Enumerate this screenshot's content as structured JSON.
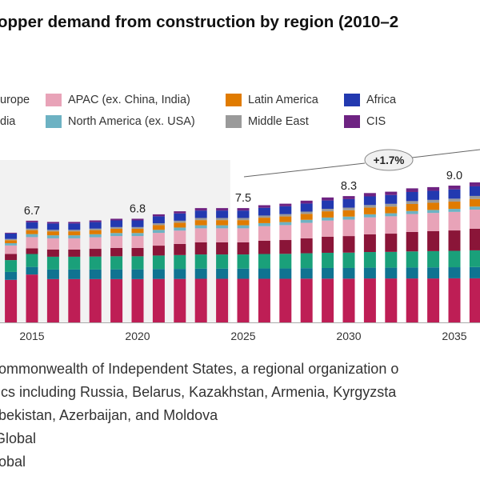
{
  "title": "opper demand from construction by region (2010–2",
  "legend": [
    {
      "label": "urope",
      "color": "#1AA07A"
    },
    {
      "label": "dia",
      "color": "#8A1538"
    },
    {
      "label": "APAC (ex. China, India)",
      "color": "#E8A3B8"
    },
    {
      "label": "North America (ex. USA)",
      "color": "#6DB2C3"
    },
    {
      "label": "Latin America",
      "color": "#E07B00"
    },
    {
      "label": "Middle East",
      "color": "#9A9A9A"
    },
    {
      "label": "Africa",
      "color": "#2239B0"
    },
    {
      "label": "CIS",
      "color": "#6E2382"
    }
  ],
  "chart_data": {
    "type": "bar",
    "stacked": true,
    "categories": [
      2014,
      2015,
      2016,
      2017,
      2018,
      2019,
      2020,
      2021,
      2022,
      2023,
      2024,
      2025,
      2026,
      2027,
      2028,
      2029,
      2030,
      2031,
      2032,
      2033,
      2034,
      2035,
      2036
    ],
    "x_tick_labels": [
      "2015",
      "2020",
      "2025",
      "2030",
      "2035"
    ],
    "ylim": [
      0,
      10.6
    ],
    "grid": false,
    "historical_shading_until": 2024,
    "series": [
      {
        "color": "#BE1E55",
        "values": [
          2.8,
          3.15,
          2.85,
          2.85,
          2.85,
          2.85,
          2.85,
          2.86,
          2.86,
          2.87,
          2.87,
          2.87,
          2.87,
          2.87,
          2.88,
          2.88,
          2.88,
          2.89,
          2.89,
          2.89,
          2.89,
          2.9,
          2.9
        ]
      },
      {
        "color": "#0F7391",
        "values": [
          0.52,
          0.5,
          0.63,
          0.63,
          0.63,
          0.64,
          0.64,
          0.65,
          0.66,
          0.67,
          0.67,
          0.67,
          0.68,
          0.68,
          0.69,
          0.7,
          0.7,
          0.71,
          0.71,
          0.72,
          0.73,
          0.73,
          0.74
        ]
      },
      {
        "name": "urope",
        "color": "#1AA07A",
        "values": [
          0.78,
          0.85,
          0.84,
          0.84,
          0.85,
          0.86,
          0.86,
          0.89,
          0.91,
          0.93,
          0.93,
          0.93,
          0.95,
          0.96,
          0.98,
          1.0,
          1.01,
          1.03,
          1.04,
          1.06,
          1.07,
          1.08,
          1.1
        ]
      },
      {
        "name": "dia",
        "color": "#8A1538",
        "values": [
          0.4,
          0.37,
          0.47,
          0.47,
          0.51,
          0.55,
          0.55,
          0.65,
          0.73,
          0.8,
          0.8,
          0.8,
          0.87,
          0.91,
          0.98,
          1.06,
          1.09,
          1.16,
          1.2,
          1.28,
          1.31,
          1.34,
          1.42
        ]
      },
      {
        "name": "APAC (ex. China, India)",
        "color": "#E8A3B8",
        "values": [
          0.56,
          0.74,
          0.74,
          0.74,
          0.76,
          0.78,
          0.78,
          0.84,
          0.88,
          0.92,
          0.92,
          0.92,
          0.96,
          0.98,
          1.02,
          1.06,
          1.08,
          1.12,
          1.14,
          1.18,
          1.2,
          1.22,
          1.26
        ]
      },
      {
        "name": "North America (ex. USA)",
        "color": "#6DB2C3",
        "values": [
          0.15,
          0.2,
          0.2,
          0.2,
          0.2,
          0.2,
          0.2,
          0.2,
          0.2,
          0.2,
          0.2,
          0.2,
          0.2,
          0.2,
          0.2,
          0.2,
          0.2,
          0.2,
          0.2,
          0.2,
          0.2,
          0.2,
          0.2
        ]
      },
      {
        "name": "Latin America",
        "color": "#E07B00",
        "values": [
          0.2,
          0.26,
          0.26,
          0.26,
          0.27,
          0.28,
          0.28,
          0.31,
          0.32,
          0.34,
          0.34,
          0.34,
          0.36,
          0.37,
          0.39,
          0.41,
          0.42,
          0.44,
          0.44,
          0.46,
          0.47,
          0.48,
          0.5
        ]
      },
      {
        "name": "Middle East",
        "color": "#9A9A9A",
        "values": [
          0.08,
          0.1,
          0.1,
          0.1,
          0.1,
          0.11,
          0.11,
          0.12,
          0.13,
          0.14,
          0.14,
          0.14,
          0.14,
          0.15,
          0.15,
          0.16,
          0.17,
          0.17,
          0.18,
          0.19,
          0.19,
          0.19,
          0.2
        ]
      },
      {
        "name": "Africa",
        "color": "#2239B0",
        "values": [
          0.36,
          0.42,
          0.42,
          0.42,
          0.43,
          0.44,
          0.44,
          0.46,
          0.48,
          0.49,
          0.49,
          0.49,
          0.51,
          0.52,
          0.53,
          0.55,
          0.56,
          0.57,
          0.58,
          0.6,
          0.6,
          0.61,
          0.63
        ]
      },
      {
        "name": "CIS",
        "color": "#6E2382",
        "values": [
          0.05,
          0.1,
          0.1,
          0.1,
          0.11,
          0.11,
          0.11,
          0.13,
          0.14,
          0.16,
          0.16,
          0.16,
          0.17,
          0.17,
          0.19,
          0.2,
          0.2,
          0.22,
          0.22,
          0.24,
          0.24,
          0.25,
          0.26
        ]
      }
    ],
    "data_labels": [
      {
        "year": 2015,
        "text": "6.7"
      },
      {
        "year": 2020,
        "text": "6.8"
      },
      {
        "year": 2025,
        "text": "7.5"
      },
      {
        "year": 2030,
        "text": "8.3"
      },
      {
        "year": 2035,
        "text": "9.0"
      }
    ],
    "annotation": {
      "text": "+1.7%",
      "from_year": 2025,
      "to_year": 2037
    }
  },
  "footnotes": [
    "ommonwealth of Independent States, a regional organization o",
    "ics including Russia, Belarus, Kazakhstan, Armenia, Kyrgyzsta",
    "bekistan, Azerbaijan, and Moldova",
    "Global",
    "lobal"
  ]
}
